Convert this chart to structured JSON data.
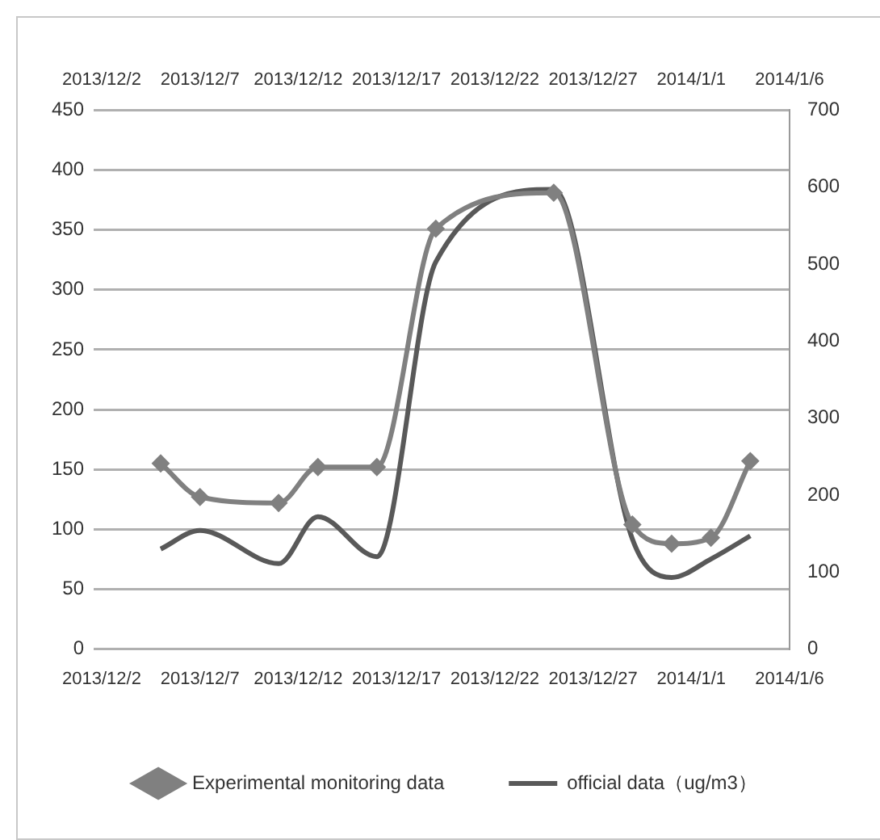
{
  "chart_data": {
    "type": "line",
    "x": [
      "2013-12-05",
      "2013-12-07",
      "2013-12-11",
      "2013-12-13",
      "2013-12-16",
      "2013-12-19",
      "2013-12-25",
      "2013-12-29",
      "2013-12-31",
      "2014-01-02",
      "2014-01-04"
    ],
    "series": [
      {
        "name": "Experimental monitoring data",
        "color": "#808080",
        "marker": "diamond",
        "values": [
          155,
          127,
          122,
          152,
          152,
          351,
          381,
          104,
          88,
          93,
          157
        ]
      },
      {
        "name": "official data（ug/m3）",
        "color": "#595959",
        "marker": "none",
        "axis": "y2",
        "values": [
          130,
          154,
          111,
          172,
          120,
          503,
          597,
          143,
          93,
          117,
          147
        ]
      }
    ],
    "xlim": [
      "2013-12-02",
      "2014-01-06"
    ],
    "xticks": [
      {
        "value": "2013-12-02",
        "label": "2013/12/2"
      },
      {
        "value": "2013-12-07",
        "label": "2013/12/7"
      },
      {
        "value": "2013-12-12",
        "label": "2013/12/12"
      },
      {
        "value": "2013-12-17",
        "label": "2013/12/17"
      },
      {
        "value": "2013-12-22",
        "label": "2013/12/22"
      },
      {
        "value": "2013-12-27",
        "label": "2013/12/27"
      },
      {
        "value": "2014-01-01",
        "label": "2014/1/1"
      },
      {
        "value": "2014-01-06",
        "label": "2014/1/6"
      }
    ],
    "x2lim": [
      "2013-12-02",
      "2014-01-06"
    ],
    "x2ticks": [
      {
        "value": "2013-12-02",
        "label": "2013/12/2"
      },
      {
        "value": "2013-12-07",
        "label": "2013/12/7"
      },
      {
        "value": "2013-12-12",
        "label": "2013/12/12"
      },
      {
        "value": "2013-12-17",
        "label": "2013/12/17"
      },
      {
        "value": "2013-12-22",
        "label": "2013/12/22"
      },
      {
        "value": "2013-12-27",
        "label": "2013/12/27"
      },
      {
        "value": "2014-01-01",
        "label": "2014/1/1"
      },
      {
        "value": "2014-01-06",
        "label": "2014/1/6"
      }
    ],
    "ylim": [
      0,
      450
    ],
    "yticks": [
      0,
      50,
      100,
      150,
      200,
      250,
      300,
      350,
      400,
      450
    ],
    "y2lim": [
      0,
      700
    ],
    "y2ticks": [
      0,
      100,
      200,
      300,
      400,
      500,
      600,
      700
    ],
    "grid": "y",
    "legend": "bottom"
  }
}
